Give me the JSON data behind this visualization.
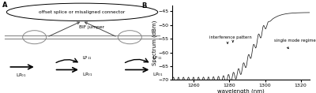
{
  "panel_A_label": "A",
  "panel_B_label": "B",
  "ellipse_text": "offset splice or misaligned connector",
  "bif_text": "BIF jumper",
  "interference_text": "interference pattern",
  "single_mode_text": "single mode regime",
  "xlabel": "wavelength (nm)",
  "ylabel": "Spectrum (dBm)",
  "xlim": [
    1248,
    1325
  ],
  "ylim": [
    -70,
    -43
  ],
  "xticks": [
    1260,
    1280,
    1300,
    1320
  ],
  "yticks": [
    -70,
    -65,
    -60,
    -55,
    -50,
    -45
  ],
  "wavelength_start": 1248,
  "wavelength_end": 1325,
  "background_color": "#ffffff",
  "line_color": "#222222"
}
